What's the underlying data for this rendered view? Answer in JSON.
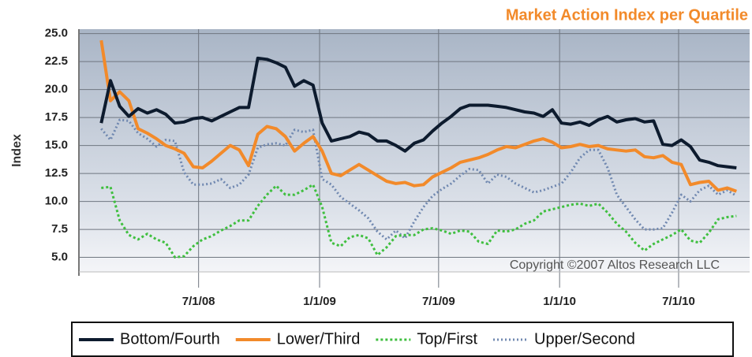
{
  "chart_data": {
    "type": "line",
    "title": "Market Action Index per Quartile",
    "ylabel": "Index",
    "annotation": "Copyright ©2007 Altos Research LLC",
    "x": [
      "2008-02-04",
      "2008-02-18",
      "2008-03-03",
      "2008-03-17",
      "2008-03-31",
      "2008-04-14",
      "2008-04-28",
      "2008-05-12",
      "2008-05-26",
      "2008-06-09",
      "2008-06-23",
      "2008-07-07",
      "2008-07-21",
      "2008-08-04",
      "2008-08-18",
      "2008-09-01",
      "2008-09-15",
      "2008-09-29",
      "2008-10-13",
      "2008-10-27",
      "2008-11-10",
      "2008-11-24",
      "2008-12-08",
      "2008-12-22",
      "2009-01-05",
      "2009-01-19",
      "2009-02-02",
      "2009-02-16",
      "2009-03-02",
      "2009-03-16",
      "2009-03-30",
      "2009-04-13",
      "2009-04-27",
      "2009-05-11",
      "2009-05-25",
      "2009-06-08",
      "2009-06-22",
      "2009-07-06",
      "2009-07-20",
      "2009-08-03",
      "2009-08-17",
      "2009-08-31",
      "2009-09-14",
      "2009-09-28",
      "2009-10-12",
      "2009-10-26",
      "2009-11-09",
      "2009-11-23",
      "2009-12-07",
      "2009-12-21",
      "2010-01-04",
      "2010-01-18",
      "2010-02-01",
      "2010-02-15",
      "2010-03-01",
      "2010-03-15",
      "2010-03-29",
      "2010-04-12",
      "2010-04-26",
      "2010-05-10",
      "2010-05-24",
      "2010-06-07",
      "2010-06-21",
      "2010-07-05",
      "2010-07-19",
      "2010-08-02",
      "2010-08-16",
      "2010-08-30",
      "2010-09-13",
      "2010-09-27"
    ],
    "series": [
      {
        "name": "Bottom/Fourth",
        "color": "#0d1b2e",
        "width": 4,
        "dash": "none",
        "values": [
          17.0,
          20.8,
          18.5,
          17.6,
          18.3,
          17.9,
          18.2,
          17.8,
          17.0,
          17.1,
          17.4,
          17.5,
          17.2,
          17.6,
          18.0,
          18.4,
          18.4,
          22.8,
          22.7,
          22.4,
          22.0,
          20.3,
          20.8,
          20.4,
          17.0,
          15.4,
          15.6,
          15.8,
          16.2,
          16.0,
          15.4,
          15.4,
          15.0,
          14.5,
          15.2,
          15.5,
          16.3,
          17.0,
          17.6,
          18.3,
          18.6,
          18.6,
          18.6,
          18.5,
          18.4,
          18.2,
          18.0,
          17.9,
          17.6,
          18.2,
          17.0,
          16.9,
          17.1,
          16.8,
          17.3,
          17.6,
          17.1,
          17.3,
          17.4,
          17.1,
          17.2,
          15.1,
          15.0,
          15.5,
          14.9,
          13.7,
          13.5,
          13.2,
          13.1,
          13.0
        ]
      },
      {
        "name": "Lower/Third",
        "color": "#f28a2a",
        "width": 4,
        "dash": "none",
        "values": [
          24.4,
          19.0,
          19.8,
          19.0,
          16.5,
          16.1,
          15.6,
          15.0,
          14.7,
          14.3,
          13.1,
          13.0,
          13.6,
          14.3,
          15.0,
          14.6,
          13.2,
          16.0,
          16.7,
          16.5,
          15.8,
          14.5,
          15.2,
          15.8,
          14.5,
          12.5,
          12.3,
          12.8,
          13.3,
          12.8,
          12.3,
          11.8,
          11.6,
          11.7,
          11.4,
          11.5,
          12.2,
          12.6,
          13.0,
          13.5,
          13.7,
          13.9,
          14.2,
          14.6,
          14.9,
          14.8,
          15.1,
          15.4,
          15.6,
          15.3,
          14.8,
          14.9,
          15.1,
          14.9,
          15.0,
          14.7,
          14.6,
          14.5,
          14.6,
          14.0,
          13.9,
          14.1,
          13.5,
          13.3,
          11.5,
          11.7,
          11.8,
          11.0,
          11.2,
          10.9
        ]
      },
      {
        "name": "Top/First",
        "color": "#3fbf3f",
        "width": 3,
        "dash": "3,3",
        "values": [
          11.2,
          11.3,
          8.3,
          7.0,
          6.6,
          7.1,
          6.6,
          6.3,
          5.0,
          5.1,
          6.0,
          6.6,
          6.9,
          7.4,
          7.8,
          8.3,
          8.3,
          9.6,
          10.6,
          11.4,
          10.6,
          10.6,
          11.0,
          11.5,
          9.5,
          6.3,
          6.0,
          6.8,
          7.0,
          6.7,
          5.2,
          5.9,
          6.9,
          7.0,
          7.0,
          7.5,
          7.6,
          7.4,
          7.1,
          7.4,
          7.3,
          6.4,
          6.2,
          7.4,
          7.3,
          7.5,
          8.0,
          8.3,
          9.1,
          9.3,
          9.5,
          9.7,
          9.8,
          9.6,
          9.8,
          9.0,
          8.0,
          7.3,
          6.3,
          5.6,
          6.2,
          6.6,
          7.0,
          7.5,
          6.5,
          6.3,
          7.2,
          8.4,
          8.6,
          8.7
        ]
      },
      {
        "name": "Upper/Second",
        "color": "#7088b0",
        "width": 3,
        "dash": "2,3",
        "values": [
          16.5,
          15.5,
          17.3,
          17.2,
          16.1,
          15.6,
          14.9,
          15.5,
          15.4,
          12.6,
          11.5,
          11.5,
          11.6,
          12.0,
          11.2,
          11.5,
          12.4,
          14.8,
          15.1,
          15.2,
          15.0,
          16.4,
          16.2,
          16.4,
          12.0,
          11.5,
          10.4,
          9.8,
          9.2,
          8.5,
          7.3,
          6.6,
          7.4,
          6.7,
          8.2,
          9.5,
          10.5,
          11.1,
          11.6,
          12.3,
          12.9,
          12.8,
          11.6,
          12.4,
          12.2,
          11.6,
          11.2,
          10.8,
          11.0,
          11.3,
          11.6,
          12.6,
          13.9,
          14.6,
          14.6,
          13.0,
          10.6,
          9.5,
          8.4,
          7.5,
          7.5,
          7.6,
          9.0,
          10.6,
          10.0,
          11.0,
          11.4,
          10.6,
          11.0,
          10.5
        ]
      }
    ],
    "xlim": [
      "2008-01-01",
      "2010-10-17"
    ],
    "xticks": [
      {
        "value": "2008-07-01",
        "label": "7/1/08"
      },
      {
        "value": "2009-01-01",
        "label": "1/1/09"
      },
      {
        "value": "2009-07-01",
        "label": "7/1/09"
      },
      {
        "value": "2010-01-01",
        "label": "1/1/10"
      },
      {
        "value": "2010-07-01",
        "label": "7/1/10"
      }
    ],
    "ylim": [
      3.7,
      25.4
    ],
    "yticks": [
      {
        "value": 5,
        "label": "5.0"
      },
      7.5,
      {
        "value": 10,
        "label": "10.0"
      },
      12.5,
      {
        "value": 15,
        "label": "15.0"
      },
      17.5,
      {
        "value": 20,
        "label": "20.0"
      },
      22.5,
      {
        "value": 25,
        "label": "25.0"
      }
    ],
    "grid": true,
    "legend": "bottom"
  }
}
